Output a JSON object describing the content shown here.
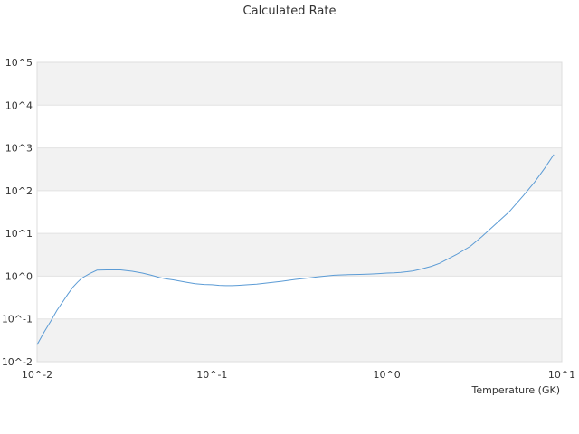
{
  "chart_data": {
    "type": "line",
    "title": "Calculated Rate",
    "xlabel": "Temperature (GK)",
    "ylabel": "",
    "x_scale": "log",
    "y_scale": "log",
    "xlim": [
      0.01,
      10
    ],
    "ylim": [
      0.01,
      100000
    ],
    "x_ticks": [
      {
        "value": 0.01,
        "label": "10^-2"
      },
      {
        "value": 0.1,
        "label": "10^-1"
      },
      {
        "value": 1,
        "label": "10^0"
      },
      {
        "value": 10,
        "label": "10^1"
      }
    ],
    "y_ticks": [
      {
        "value": 0.01,
        "label": "10^-2"
      },
      {
        "value": 0.1,
        "label": "10^-1"
      },
      {
        "value": 1,
        "label": "10^0"
      },
      {
        "value": 10,
        "label": "10^1"
      },
      {
        "value": 100,
        "label": "10^2"
      },
      {
        "value": 1000,
        "label": "10^3"
      },
      {
        "value": 10000,
        "label": "10^4"
      },
      {
        "value": 100000,
        "label": "10^5"
      }
    ],
    "grid": "alternating horizontal bands",
    "series": [
      {
        "color": "#5b9bd5",
        "x": [
          0.01,
          0.011,
          0.012,
          0.013,
          0.014,
          0.015,
          0.016,
          0.017,
          0.018,
          0.02,
          0.022,
          0.025,
          0.03,
          0.035,
          0.04,
          0.045,
          0.05,
          0.055,
          0.06,
          0.07,
          0.08,
          0.09,
          0.1,
          0.11,
          0.12,
          0.13,
          0.14,
          0.15,
          0.16,
          0.18,
          0.2,
          0.25,
          0.3,
          0.35,
          0.4,
          0.45,
          0.5,
          0.6,
          0.7,
          0.8,
          0.9,
          1.0,
          1.1,
          1.2,
          1.3,
          1.4,
          1.5,
          1.6,
          1.8,
          2.0,
          2.5,
          3.0,
          3.5,
          4.0,
          5.0,
          6.0,
          7.0,
          8.0,
          9.0
        ],
        "y": [
          0.025,
          0.05,
          0.09,
          0.16,
          0.25,
          0.38,
          0.55,
          0.72,
          0.9,
          1.15,
          1.38,
          1.4,
          1.4,
          1.3,
          1.18,
          1.05,
          0.93,
          0.86,
          0.82,
          0.73,
          0.67,
          0.64,
          0.63,
          0.61,
          0.6,
          0.6,
          0.61,
          0.62,
          0.63,
          0.65,
          0.68,
          0.76,
          0.84,
          0.9,
          0.96,
          1.01,
          1.05,
          1.08,
          1.1,
          1.12,
          1.15,
          1.18,
          1.2,
          1.23,
          1.27,
          1.32,
          1.4,
          1.5,
          1.7,
          2.0,
          3.2,
          5.0,
          8.5,
          14,
          32,
          75,
          160,
          340,
          700
        ]
      }
    ]
  }
}
